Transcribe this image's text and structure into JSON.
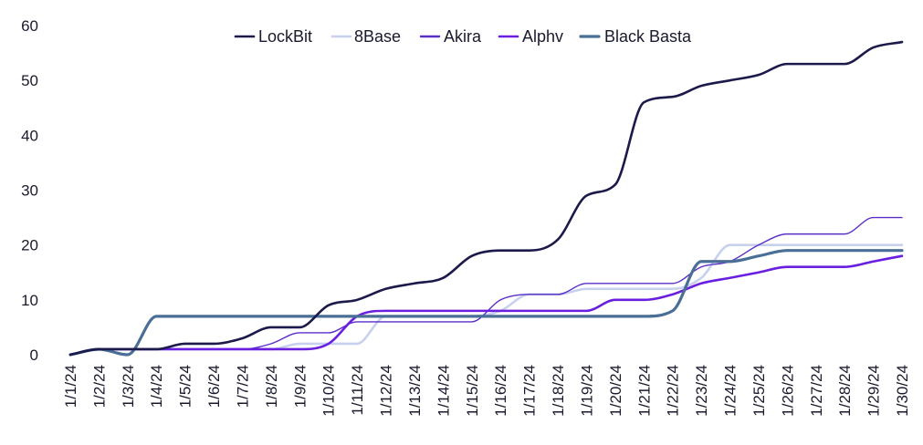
{
  "chart_data": {
    "type": "line",
    "title": "",
    "xlabel": "",
    "ylabel": "",
    "ylim": [
      0,
      60
    ],
    "yticks": [
      0,
      10,
      20,
      30,
      40,
      50,
      60
    ],
    "grid": false,
    "legend_position": "top-center",
    "categories": [
      "1/1/24",
      "1/2/24",
      "1/3/24",
      "1/4/24",
      "1/5/24",
      "1/6/24",
      "1/7/24",
      "1/8/24",
      "1/9/24",
      "1/10/24",
      "1/11/24",
      "1/12/24",
      "1/13/24",
      "1/14/24",
      "1/15/24",
      "1/16/24",
      "1/17/24",
      "1/18/24",
      "1/19/24",
      "1/20/24",
      "1/21/24",
      "1/22/24",
      "1/23/24",
      "1/24/24",
      "1/25/24",
      "1/26/24",
      "1/27/24",
      "1/28/24",
      "1/29/24",
      "1/30/24"
    ],
    "series": [
      {
        "name": "LockBit",
        "color": "#1c1a4a",
        "width": 2.6,
        "values": [
          0,
          1,
          1,
          1,
          2,
          2,
          3,
          5,
          5,
          9,
          10,
          12,
          13,
          14,
          18,
          19,
          19,
          21,
          29,
          31,
          46,
          47,
          49,
          50,
          51,
          53,
          53,
          53,
          56,
          57
        ]
      },
      {
        "name": "8Base",
        "color": "#c7d1ee",
        "width": 2.6,
        "values": [
          0,
          1,
          1,
          1,
          1,
          1,
          1,
          1,
          2,
          2,
          2,
          7,
          7,
          7,
          7,
          8,
          11,
          11,
          12,
          12,
          12,
          12,
          14,
          20,
          20,
          20,
          20,
          20,
          20,
          20
        ]
      },
      {
        "name": "Akira",
        "color": "#5a2fc8",
        "width": 1.4,
        "values": [
          0,
          1,
          1,
          1,
          1,
          1,
          1,
          2,
          4,
          4,
          6,
          6,
          6,
          6,
          6,
          10,
          11,
          11,
          13,
          13,
          13,
          13,
          16,
          17,
          20,
          22,
          22,
          22,
          25,
          25
        ]
      },
      {
        "name": "Alphv",
        "color": "#6a1fe0",
        "width": 2.6,
        "values": [
          0,
          1,
          1,
          1,
          1,
          1,
          1,
          1,
          1,
          2,
          7,
          8,
          8,
          8,
          8,
          8,
          8,
          8,
          8,
          10,
          10,
          11,
          13,
          14,
          15,
          16,
          16,
          16,
          17,
          18
        ]
      },
      {
        "name": "Black Basta",
        "color": "#4a6f96",
        "width": 3.2,
        "values": [
          0,
          1,
          0,
          7,
          7,
          7,
          7,
          7,
          7,
          7,
          7,
          7,
          7,
          7,
          7,
          7,
          7,
          7,
          7,
          7,
          7,
          8,
          17,
          17,
          18,
          19,
          19,
          19,
          19,
          19
        ]
      }
    ]
  }
}
